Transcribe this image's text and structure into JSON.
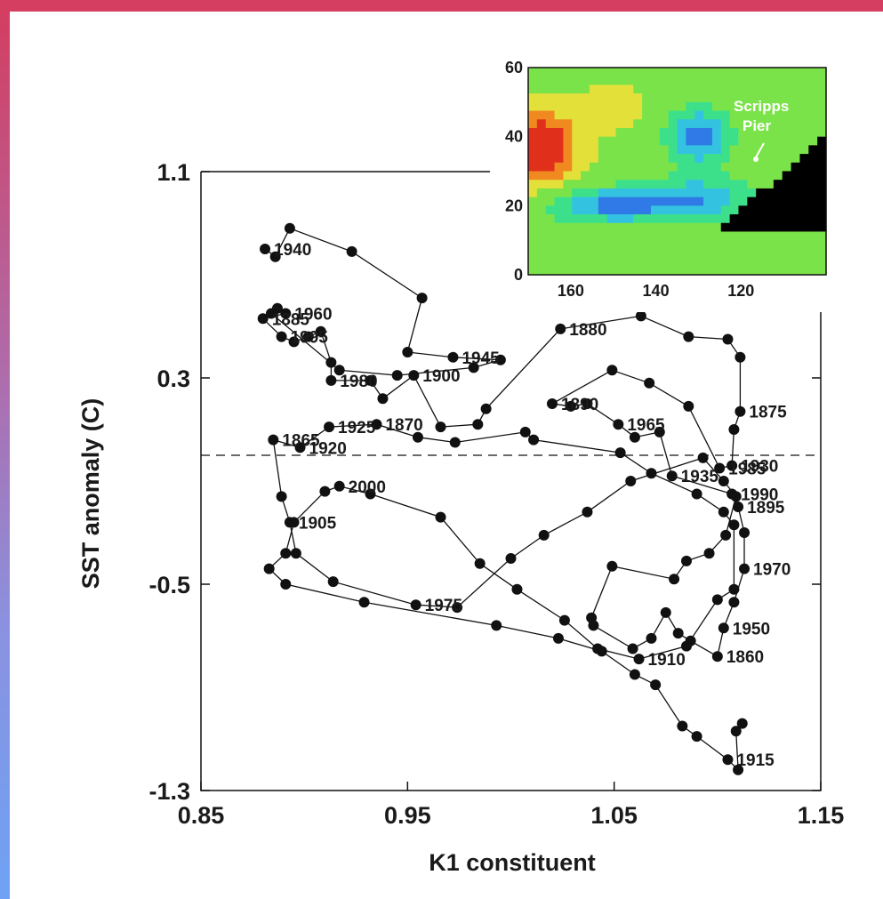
{
  "chart_data": [
    {
      "type": "line",
      "title": "",
      "xlabel": "K1 constituent",
      "ylabel": "SST anomaly (C)",
      "xlim": [
        0.85,
        1.15
      ],
      "ylim": [
        -1.3,
        1.1
      ],
      "x_ticks": [
        "0.85",
        "0.95",
        "1.05",
        "1.15"
      ],
      "y_ticks": [
        "1.1",
        "0.3",
        "-0.5",
        "-1.3"
      ],
      "y_ticks_values": [
        1.1,
        0.3,
        -0.5,
        -1.3
      ],
      "x_ticks_values": [
        0.85,
        0.95,
        1.05,
        1.15
      ],
      "reference_line_y": 0.0,
      "marker": "filled-circle",
      "line_color": "#111111",
      "points": [
        {
          "x": 0.881,
          "y": 0.8,
          "label": "1940"
        },
        {
          "x": 0.886,
          "y": 0.77
        },
        {
          "x": 0.893,
          "y": 0.88
        },
        {
          "x": 0.923,
          "y": 0.79
        },
        {
          "x": 0.957,
          "y": 0.61
        },
        {
          "x": 0.95,
          "y": 0.4
        },
        {
          "x": 0.972,
          "y": 0.38,
          "label": "1945"
        },
        {
          "x": 0.995,
          "y": 0.37
        },
        {
          "x": 0.982,
          "y": 0.34
        },
        {
          "x": 0.945,
          "y": 0.31
        },
        {
          "x": 0.917,
          "y": 0.33
        },
        {
          "x": 0.884,
          "y": 0.55
        },
        {
          "x": 0.887,
          "y": 0.57
        },
        {
          "x": 0.891,
          "y": 0.55,
          "label": "1960"
        },
        {
          "x": 0.88,
          "y": 0.53,
          "label": "1885"
        },
        {
          "x": 0.889,
          "y": 0.46,
          "label": "1995"
        },
        {
          "x": 0.895,
          "y": 0.44
        },
        {
          "x": 0.902,
          "y": 0.46
        },
        {
          "x": 0.908,
          "y": 0.48
        },
        {
          "x": 0.913,
          "y": 0.36
        },
        {
          "x": 0.913,
          "y": 0.29,
          "label": "1980"
        },
        {
          "x": 0.932,
          "y": 0.29
        },
        {
          "x": 0.938,
          "y": 0.22
        },
        {
          "x": 0.953,
          "y": 0.31,
          "label": "1900"
        },
        {
          "x": 0.966,
          "y": 0.11
        },
        {
          "x": 0.984,
          "y": 0.12
        },
        {
          "x": 0.988,
          "y": 0.18
        },
        {
          "x": 1.024,
          "y": 0.49,
          "label": "1880"
        },
        {
          "x": 1.063,
          "y": 0.54
        },
        {
          "x": 1.086,
          "y": 0.46
        },
        {
          "x": 1.105,
          "y": 0.45
        },
        {
          "x": 1.111,
          "y": 0.38
        },
        {
          "x": 1.111,
          "y": 0.17,
          "label": "1875"
        },
        {
          "x": 1.108,
          "y": 0.1
        },
        {
          "x": 1.107,
          "y": -0.04,
          "label": "1930"
        },
        {
          "x": 1.101,
          "y": -0.05,
          "label": "1985"
        },
        {
          "x": 1.086,
          "y": 0.19
        },
        {
          "x": 1.067,
          "y": 0.28
        },
        {
          "x": 1.049,
          "y": 0.33
        },
        {
          "x": 1.02,
          "y": 0.2,
          "label": "1890"
        },
        {
          "x": 1.029,
          "y": 0.19
        },
        {
          "x": 1.037,
          "y": 0.2
        },
        {
          "x": 1.052,
          "y": 0.12,
          "label": "1965"
        },
        {
          "x": 1.06,
          "y": 0.07
        },
        {
          "x": 1.072,
          "y": 0.09
        },
        {
          "x": 1.078,
          "y": -0.08,
          "label": "1935"
        },
        {
          "x": 1.107,
          "y": -0.15,
          "label": "1990"
        },
        {
          "x": 1.11,
          "y": -0.2,
          "label": "1895"
        },
        {
          "x": 1.113,
          "y": -0.3
        },
        {
          "x": 1.113,
          "y": -0.44,
          "label": "1970"
        },
        {
          "x": 1.108,
          "y": -0.57
        },
        {
          "x": 1.103,
          "y": -0.67,
          "label": "1950"
        },
        {
          "x": 1.1,
          "y": -0.78,
          "label": "1860"
        },
        {
          "x": 1.087,
          "y": -0.72
        },
        {
          "x": 1.081,
          "y": -0.69
        },
        {
          "x": 1.075,
          "y": -0.61
        },
        {
          "x": 1.068,
          "y": -0.71
        },
        {
          "x": 1.059,
          "y": -0.75
        },
        {
          "x": 1.04,
          "y": -0.66
        },
        {
          "x": 1.039,
          "y": -0.63
        },
        {
          "x": 1.049,
          "y": -0.43
        },
        {
          "x": 1.079,
          "y": -0.48
        },
        {
          "x": 1.085,
          "y": -0.41
        },
        {
          "x": 1.096,
          "y": -0.38
        },
        {
          "x": 1.104,
          "y": -0.31
        },
        {
          "x": 1.109,
          "y": -0.16
        },
        {
          "x": 1.103,
          "y": -0.1
        },
        {
          "x": 1.093,
          "y": -0.01
        },
        {
          "x": 1.058,
          "y": -0.1
        },
        {
          "x": 1.037,
          "y": -0.22
        },
        {
          "x": 1.016,
          "y": -0.31
        },
        {
          "x": 1.0,
          "y": -0.4
        },
        {
          "x": 0.974,
          "y": -0.59
        },
        {
          "x": 0.954,
          "y": -0.58,
          "label": "1975"
        },
        {
          "x": 0.914,
          "y": -0.49
        },
        {
          "x": 0.896,
          "y": -0.38
        },
        {
          "x": 0.893,
          "y": -0.26,
          "label": "1905"
        },
        {
          "x": 0.889,
          "y": -0.16
        },
        {
          "x": 0.885,
          "y": 0.06,
          "label": "1865"
        },
        {
          "x": 0.898,
          "y": 0.03,
          "label": "1920"
        },
        {
          "x": 0.912,
          "y": 0.11,
          "label": "1925"
        },
        {
          "x": 0.935,
          "y": 0.12,
          "label": "1870"
        },
        {
          "x": 0.955,
          "y": 0.07
        },
        {
          "x": 0.973,
          "y": 0.05
        },
        {
          "x": 1.007,
          "y": 0.09
        },
        {
          "x": 1.011,
          "y": 0.06
        },
        {
          "x": 1.053,
          "y": 0.01
        },
        {
          "x": 1.068,
          "y": -0.07
        },
        {
          "x": 1.09,
          "y": -0.15
        },
        {
          "x": 1.103,
          "y": -0.22
        },
        {
          "x": 1.108,
          "y": -0.27
        },
        {
          "x": 1.108,
          "y": -0.52
        },
        {
          "x": 1.1,
          "y": -0.56
        },
        {
          "x": 1.085,
          "y": -0.74
        },
        {
          "x": 1.062,
          "y": -0.79,
          "label": "1910"
        },
        {
          "x": 1.042,
          "y": -0.75
        },
        {
          "x": 1.026,
          "y": -0.64
        },
        {
          "x": 1.003,
          "y": -0.52
        },
        {
          "x": 0.985,
          "y": -0.42
        },
        {
          "x": 0.966,
          "y": -0.24
        },
        {
          "x": 0.932,
          "y": -0.15
        },
        {
          "x": 0.917,
          "y": -0.12,
          "label": "2000"
        },
        {
          "x": 0.91,
          "y": -0.14
        },
        {
          "x": 0.895,
          "y": -0.26
        },
        {
          "x": 0.891,
          "y": -0.38
        },
        {
          "x": 0.883,
          "y": -0.44
        },
        {
          "x": 0.891,
          "y": -0.5
        },
        {
          "x": 0.929,
          "y": -0.57
        },
        {
          "x": 0.993,
          "y": -0.66
        },
        {
          "x": 1.023,
          "y": -0.71
        },
        {
          "x": 1.044,
          "y": -0.76
        },
        {
          "x": 1.06,
          "y": -0.85
        },
        {
          "x": 1.07,
          "y": -0.89
        },
        {
          "x": 1.083,
          "y": -1.05
        },
        {
          "x": 1.09,
          "y": -1.09
        },
        {
          "x": 1.105,
          "y": -1.18,
          "label": "1915"
        },
        {
          "x": 1.11,
          "y": -1.22
        },
        {
          "x": 1.109,
          "y": -1.07
        },
        {
          "x": 1.112,
          "y": -1.04
        }
      ]
    },
    {
      "type": "heatmap",
      "title": "",
      "x_ticks": [
        "160",
        "140",
        "120"
      ],
      "y_ticks": [
        "60",
        "40",
        "20",
        "0"
      ],
      "x_ticks_values": [
        160,
        140,
        120
      ],
      "y_ticks_values": [
        60,
        40,
        20,
        0
      ],
      "xlim": [
        170,
        100
      ],
      "ylim": [
        0,
        60
      ],
      "annotation": "Scripps\nPier",
      "annotation_point": [
        117,
        33
      ],
      "colorscale": [
        "#1a3fcc",
        "#2f7ae6",
        "#33c3e0",
        "#3de08a",
        "#7be34a",
        "#e3e03a",
        "#f08a20",
        "#e0301c"
      ],
      "land_color": "#000000"
    }
  ]
}
